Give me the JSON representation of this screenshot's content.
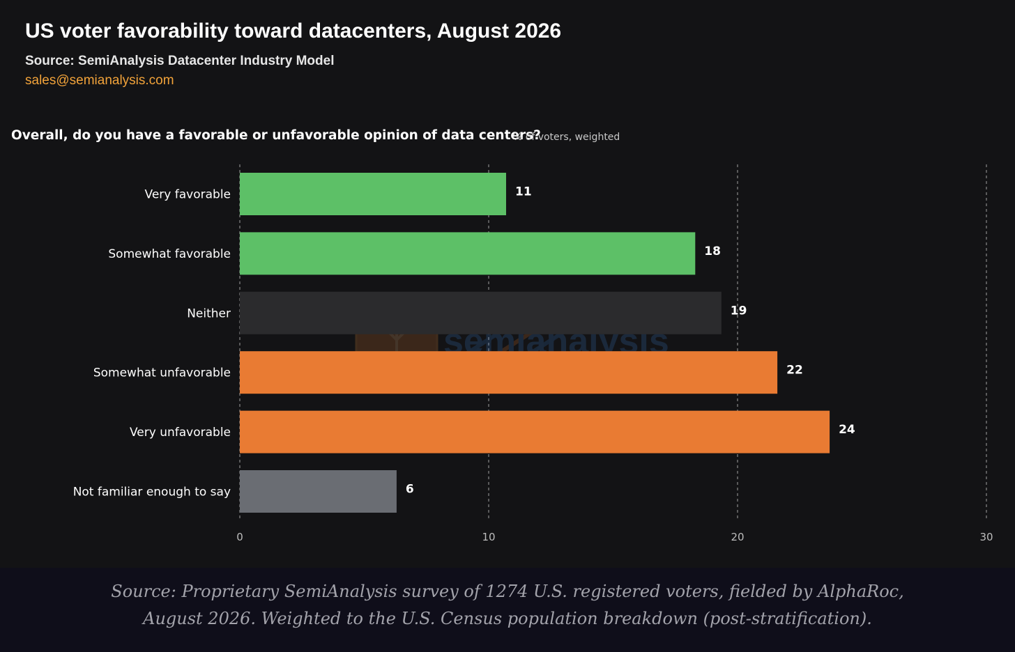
{
  "header": {
    "title": "US voter favorability toward datacenters, August 2026",
    "source": "Source: SemiAnalysis Datacenter Industry Model",
    "email": "sales@semianalysis.com"
  },
  "watermark": {
    "text": "semianalysis",
    "icon": "semianalysis-tree-logo-icon"
  },
  "chart_data": {
    "type": "bar",
    "orientation": "horizontal",
    "title": "Overall, do you have a favorable or unfavorable opinion of data centers?",
    "subtitle": "% of voters, weighted",
    "categories": [
      "Very favorable",
      "Somewhat favorable",
      "Neither",
      "Somewhat unfavorable",
      "Very unfavorable",
      "Not familiar enough to say"
    ],
    "values": [
      11,
      18,
      19,
      22,
      24,
      6
    ],
    "plotted_values": [
      10.7,
      18.3,
      19.35,
      21.6,
      23.7,
      6.3
    ],
    "bar_colors": [
      "#5dc067",
      "#5dc067",
      "#2b2b2d",
      "#e97b33",
      "#e97b33",
      "#6a6d73"
    ],
    "xlim": [
      0,
      30
    ],
    "xticks": [
      0,
      10,
      20,
      30
    ],
    "grid": "vertical dashed",
    "legend": "none"
  },
  "footer": {
    "line1": "Source: Proprietary SemiAnalysis survey of 1274 U.S. registered voters, fielded by AlphaRoc,",
    "line2": "August 2026. Weighted to the U.S. Census population breakdown (post-stratification)."
  },
  "colors": {
    "background": "#131315",
    "footer_background": "#0f0e1a",
    "accent": "#f2a33a",
    "favorable": "#5dc067",
    "unfavorable": "#e97b33",
    "neutral": "#2b2b2d",
    "unfamiliar": "#6a6d73"
  }
}
